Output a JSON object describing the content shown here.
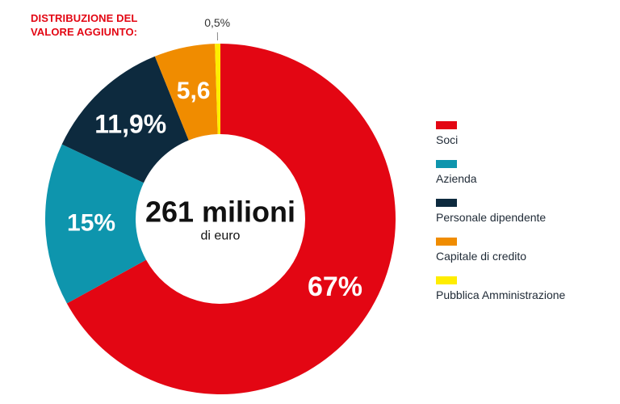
{
  "title": "DISTRIBUZIONE DEL\nVALORE AGGIUNTO:",
  "center": {
    "main": "261 milioni",
    "sub": "di euro"
  },
  "chart_data": {
    "type": "pie",
    "categories": [
      "Soci",
      "Azienda",
      "Personale dipendente",
      "Capitale di credito",
      "Pubblica Amministrazione"
    ],
    "values": [
      67,
      15,
      11.9,
      5.6,
      0.5
    ],
    "data_labels": [
      "67%",
      "15%",
      "11,9%",
      "5,6",
      "0,5%"
    ],
    "colors": [
      "#e30613",
      "#0e95ad",
      "#0d2a3e",
      "#f08c00",
      "#ffed00"
    ],
    "style": "donut",
    "center_label": "261 milioni di euro",
    "legend_position": "right"
  },
  "legend": [
    {
      "label": "Soci",
      "color": "#e30613"
    },
    {
      "label": "Azienda",
      "color": "#0e95ad"
    },
    {
      "label": "Personale dipendente",
      "color": "#0d2a3e"
    },
    {
      "label": "Capitale di credito",
      "color": "#f08c00"
    },
    {
      "label": "Pubblica Amministrazione",
      "color": "#ffed00"
    }
  ]
}
